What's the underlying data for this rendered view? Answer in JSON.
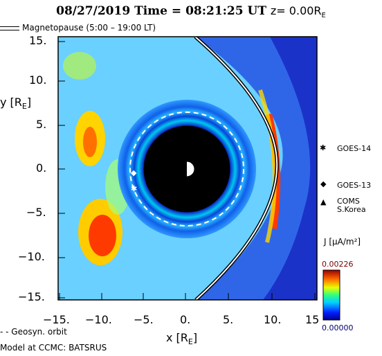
{
  "header": {
    "date_time": "08/27/2019 Time = 08:21:25 UT",
    "z_label": "z= 0.00R"
  },
  "legend": {
    "magnetopause": "Magnetopause (5:00 – 19:00 LT)",
    "geosyn": "Geosyn. orbit"
  },
  "axes": {
    "ylabel": "y [R",
    "xlabel": "x [R",
    "sub": "E",
    "y_ticks": [
      "15.",
      "10.",
      "5.",
      "0.",
      "−5.",
      "−10.",
      "−15."
    ],
    "x_ticks": [
      "−15.",
      "−10.",
      "−5.",
      "0.",
      "5.",
      "10.",
      "15"
    ]
  },
  "satellites": [
    {
      "symbol": "✱",
      "label": "GOES-14"
    },
    {
      "symbol": "◆",
      "label": "GOES-13"
    },
    {
      "symbol": "▲",
      "label": "COMS\nS.Korea"
    }
  ],
  "colorbar": {
    "title": "J [μA/m²]",
    "max": "0.00226",
    "min": "0.00000"
  },
  "footer": {
    "model": "Model at CCMC: BATSRUS"
  },
  "colors": {
    "background_field": "#6cc8ff",
    "outer": "#1f3fd0",
    "earth": "#000000"
  },
  "chart_data": {
    "type": "heatmap",
    "xlim": [
      -15,
      15
    ],
    "ylim": [
      -15,
      15
    ],
    "xlabel": "x [RE]",
    "ylabel": "y [RE]",
    "x_ticks": [
      -15,
      -10,
      -5,
      0,
      5,
      10,
      15
    ],
    "y_ticks": [
      15,
      10,
      5,
      0,
      -5,
      -10,
      -15
    ],
    "colorbar_range": [
      0.0,
      0.00226
    ],
    "variable": "J",
    "unit": "μA/m²",
    "geosyn_orbit_radius": 6.6,
    "satellites": [
      {
        "name": "GOES-14",
        "x": -6.3,
        "y": -2.3
      },
      {
        "name": "GOES-13",
        "x": -6.6,
        "y": -0.4
      }
    ]
  }
}
